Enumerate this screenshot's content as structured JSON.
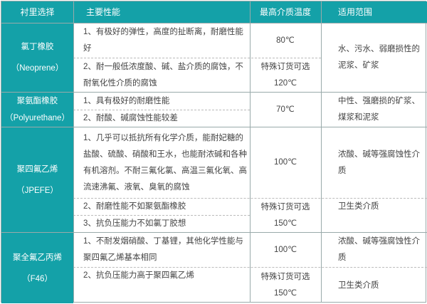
{
  "colors": {
    "header_bg": "#14a1a8",
    "header_text": "#ffffff"
  },
  "headers": [
    "衬里选择",
    "主要性能",
    "最高介质温度",
    "适用范围"
  ],
  "rows": [
    {
      "lining": [
        "氯丁橡胶",
        "（Neoprene）"
      ],
      "props": [
        "1、有极好的弹性，高度的扯断离，耐磨性能好",
        "2、耐一般低浓度酸、碱、盐介质的腐蚀，不耐氧化性介质的腐蚀"
      ],
      "temps": [
        "80℃",
        "特殊订货可选",
        "120℃"
      ],
      "scope": [
        "水、污水、弱磨损性的泥浆、矿浆"
      ]
    },
    {
      "lining": [
        "聚氨酯橡胶",
        "（Polyurethane）"
      ],
      "props": [
        "1、具有极好的耐磨性能",
        "2、耐酸、碱腐蚀性能较差"
      ],
      "temps": [
        "70℃"
      ],
      "scope": [
        "中性、强磨损的矿浆、煤浆和泥浆"
      ]
    },
    {
      "lining": [
        "聚四氟乙烯",
        "（JPEFE）"
      ],
      "props": [
        "1、几乎可以抵抗所有化学介质，能耐妃糖的盐酸、硫酸、硝酸和王水，也能耐浓碱和各种有机溶剂。不耐三氟化氯、高温三氟化氧、高流速沸氟、液氧、臭氧的腐蚀",
        "2、耐磨性能不如聚氨酯橡胶",
        "3、抗负压能力不如氯丁胶想"
      ],
      "temps": [
        "100℃",
        "特殊订货可选",
        "150℃"
      ],
      "scope": [
        "浓酸、碱等强腐蚀性介质",
        "卫生类介质"
      ]
    },
    {
      "lining": [
        "聚全氟乙丙烯",
        "（F46）"
      ],
      "props": [
        "1、不耐发烟硝酸、丁基锂，其他化学性能与聚四氟乙烯基本相同",
        "2、抗负压能力高于聚四氟乙烯"
      ],
      "temps": [
        "100℃",
        "特殊订货可选",
        "150℃"
      ],
      "scope": [
        "浓酸、碱等强腐蚀性介质",
        "卫生类介质"
      ]
    }
  ]
}
